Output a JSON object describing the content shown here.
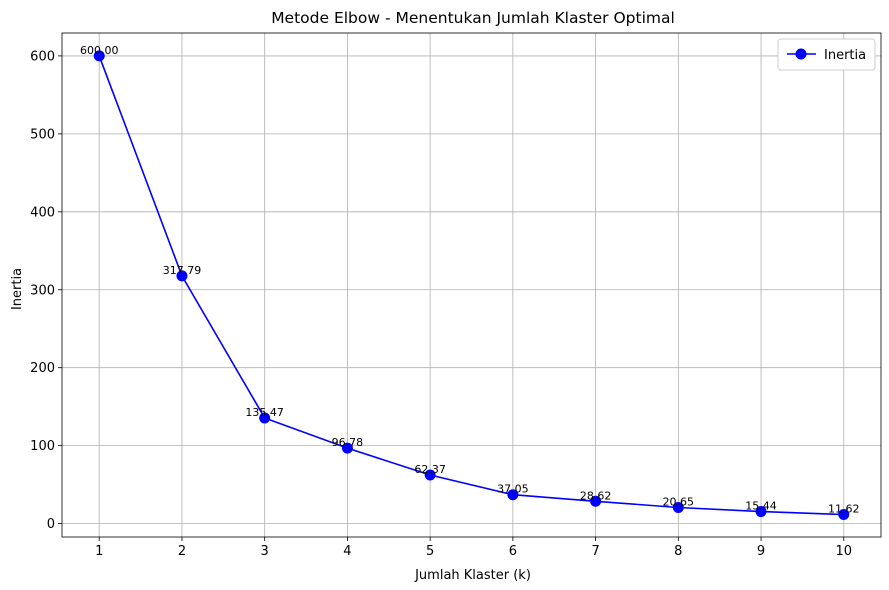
{
  "chart_data": {
    "type": "line",
    "title": "Metode Elbow - Menentukan Jumlah Klaster Optimal",
    "xlabel": "Jumlah Klaster (k)",
    "ylabel": "Inertia",
    "x": [
      1,
      2,
      3,
      4,
      5,
      6,
      7,
      8,
      9,
      10
    ],
    "series": [
      {
        "name": "Inertia",
        "values": [
          600.0,
          317.79,
          135.47,
          96.78,
          62.37,
          37.05,
          28.62,
          20.65,
          15.44,
          11.62
        ],
        "labels": [
          "600.00",
          "317.79",
          "135.47",
          "96.78",
          "62.37",
          "37.05",
          "28.62",
          "20.65",
          "15.44",
          "11.62"
        ],
        "color": "#0000ff",
        "marker": "circle"
      }
    ],
    "xlim": [
      0.55,
      10.45
    ],
    "ylim": [
      -17.2,
      629.4
    ],
    "xticks": [
      1,
      2,
      3,
      4,
      5,
      6,
      7,
      8,
      9,
      10
    ],
    "xtick_labels": [
      "1",
      "2",
      "3",
      "4",
      "5",
      "6",
      "7",
      "8",
      "9",
      "10"
    ],
    "yticks": [
      0,
      100,
      200,
      300,
      400,
      500,
      600
    ],
    "ytick_labels": [
      "0",
      "100",
      "200",
      "300",
      "400",
      "500",
      "600"
    ],
    "grid": true,
    "legend_position": "top-right"
  }
}
